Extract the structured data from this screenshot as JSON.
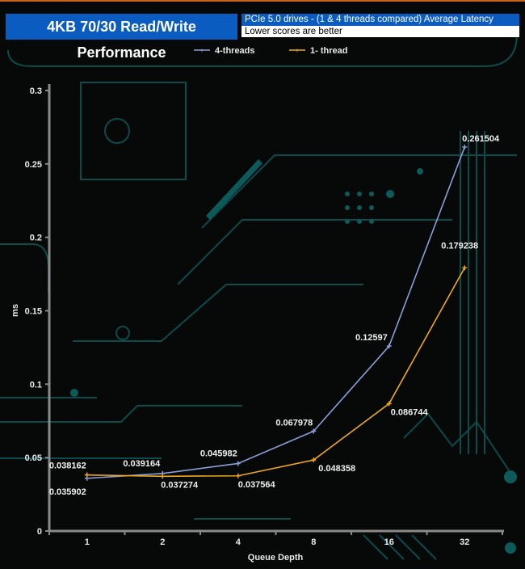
{
  "header": {
    "title": "4KB 70/30 Read/Write Performance",
    "subtitle": "PCIe 5.0 drives - (1 & 4 threads compared)  Average Latency",
    "note": "Lower scores are better"
  },
  "chart_data": {
    "type": "line",
    "categories": [
      "1",
      "2",
      "4",
      "8",
      "16",
      "32"
    ],
    "xlabel": "Queue Depth",
    "ylabel": "ms",
    "ylim": [
      0,
      0.3
    ],
    "yticks": [
      "0",
      "0.05",
      "0.1",
      "0.15",
      "0.2",
      "0.25",
      "0.3"
    ],
    "grid": false,
    "legend": "top-center",
    "series": [
      {
        "name": "4-threads",
        "color": "#8a9fd8",
        "values": [
          0.035902,
          0.039164,
          0.045982,
          0.067978,
          0.12597,
          0.261504
        ],
        "labels": [
          "0.035902",
          "0.039164",
          "0.045982",
          "0.067978",
          "0.12597",
          "0.261504"
        ]
      },
      {
        "name": "1- thread",
        "color": "#f0a81e",
        "values": [
          0.038162,
          0.037274,
          0.037564,
          0.048358,
          0.086744,
          0.179238
        ],
        "labels": [
          "0.038162",
          "0.037274",
          "0.037564",
          "0.048358",
          "0.086744",
          "0.179238"
        ]
      }
    ]
  }
}
